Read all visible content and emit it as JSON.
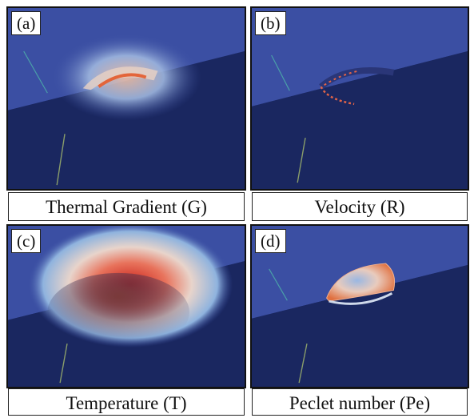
{
  "panels": [
    {
      "tag": "(a)",
      "caption": "Thermal Gradient (G)"
    },
    {
      "tag": "(b)",
      "caption": "Velocity (R)"
    },
    {
      "tag": "(c)",
      "caption": "Temperature (T)"
    },
    {
      "tag": "(d)",
      "caption": "Peclet number (Pe)"
    }
  ],
  "colors": {
    "top_surface": "#3b4fa3",
    "bottom_body": "#1a2760",
    "hot": "#d8321f",
    "warm": "#f1a37c",
    "cool": "#8fb3de"
  }
}
